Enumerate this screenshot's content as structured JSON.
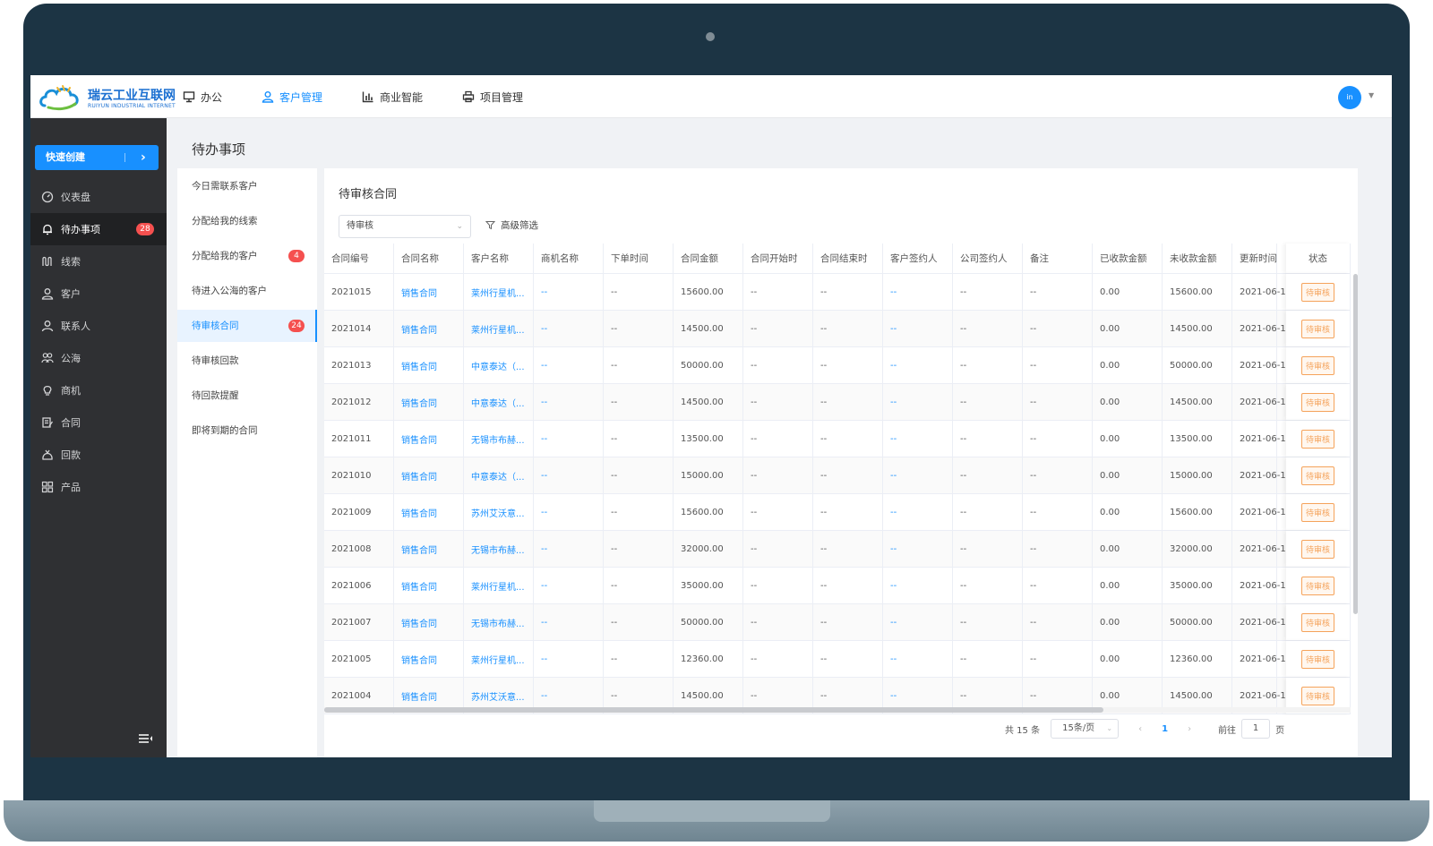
{
  "app": {
    "logo_cn": "瑞云工业互联网",
    "logo_en": "RUIYUN INDUSTRIAL INTERNET",
    "accent": "#1890ff",
    "sidebar_bg": "#2f3033",
    "badge_color": "#f5504f",
    "status_color": "#f5a35b"
  },
  "nav": {
    "items": [
      {
        "label": "办公",
        "icon": "monitor-icon"
      },
      {
        "label": "客户管理",
        "icon": "user-icon",
        "active": true
      },
      {
        "label": "商业智能",
        "icon": "bar-chart-icon"
      },
      {
        "label": "项目管理",
        "icon": "printer-icon"
      }
    ],
    "avatar": "in"
  },
  "sidebar": {
    "quick_create": "快速创建",
    "items": [
      {
        "label": "仪表盘",
        "icon": "dashboard-icon"
      },
      {
        "label": "待办事项",
        "icon": "bell-icon",
        "badge": "28",
        "active": true
      },
      {
        "label": "线索",
        "icon": "leads-icon"
      },
      {
        "label": "客户",
        "icon": "customer-icon"
      },
      {
        "label": "联系人",
        "icon": "contact-icon"
      },
      {
        "label": "公海",
        "icon": "pool-icon"
      },
      {
        "label": "商机",
        "icon": "bulb-icon"
      },
      {
        "label": "合同",
        "icon": "contract-icon"
      },
      {
        "label": "回款",
        "icon": "payment-icon"
      },
      {
        "label": "产品",
        "icon": "product-icon"
      }
    ]
  },
  "page": {
    "title": "待办事项",
    "subnav": [
      {
        "label": "今日需联系客户"
      },
      {
        "label": "分配给我的线索"
      },
      {
        "label": "分配给我的客户",
        "badge": "4"
      },
      {
        "label": "待进入公海的客户"
      },
      {
        "label": "待审核合同",
        "badge": "24",
        "active": true
      },
      {
        "label": "待审核回款"
      },
      {
        "label": "待回款提醒"
      },
      {
        "label": "即将到期的合同"
      }
    ]
  },
  "main": {
    "title": "待审核合同",
    "filter_select": "待审核",
    "advanced_filter": "高级筛选",
    "columns": [
      "合同编号",
      "合同名称",
      "客户名称",
      "商机名称",
      "下单时间",
      "合同金额",
      "合同开始时",
      "合同结束时",
      "客户签约人",
      "公司签约人",
      "备注",
      "已收款金额",
      "未收款金额",
      "更新时间",
      "状态"
    ],
    "rows": [
      [
        "2021015",
        "销售合同",
        "莱州行星机...",
        "--",
        "--",
        "15600.00",
        "--",
        "--",
        "--",
        "--",
        "--",
        "0.00",
        "15600.00",
        "2021-06-1",
        "待审核"
      ],
      [
        "2021014",
        "销售合同",
        "莱州行星机...",
        "--",
        "--",
        "14500.00",
        "--",
        "--",
        "--",
        "--",
        "--",
        "0.00",
        "14500.00",
        "2021-06-1",
        "待审核"
      ],
      [
        "2021013",
        "销售合同",
        "中意泰达（...",
        "--",
        "--",
        "50000.00",
        "--",
        "--",
        "--",
        "--",
        "--",
        "0.00",
        "50000.00",
        "2021-06-1",
        "待审核"
      ],
      [
        "2021012",
        "销售合同",
        "中意泰达（...",
        "--",
        "--",
        "14500.00",
        "--",
        "--",
        "--",
        "--",
        "--",
        "0.00",
        "14500.00",
        "2021-06-1",
        "待审核"
      ],
      [
        "2021011",
        "销售合同",
        "无锡市布赫...",
        "--",
        "--",
        "13500.00",
        "--",
        "--",
        "--",
        "--",
        "--",
        "0.00",
        "13500.00",
        "2021-06-1",
        "待审核"
      ],
      [
        "2021010",
        "销售合同",
        "中意泰达（...",
        "--",
        "--",
        "15000.00",
        "--",
        "--",
        "--",
        "--",
        "--",
        "0.00",
        "15000.00",
        "2021-06-1",
        "待审核"
      ],
      [
        "2021009",
        "销售合同",
        "苏州艾沃意...",
        "--",
        "--",
        "15600.00",
        "--",
        "--",
        "--",
        "--",
        "--",
        "0.00",
        "15600.00",
        "2021-06-1",
        "待审核"
      ],
      [
        "2021008",
        "销售合同",
        "无锡市布赫...",
        "--",
        "--",
        "32000.00",
        "--",
        "--",
        "--",
        "--",
        "--",
        "0.00",
        "32000.00",
        "2021-06-1",
        "待审核"
      ],
      [
        "2021006",
        "销售合同",
        "莱州行星机...",
        "--",
        "--",
        "35000.00",
        "--",
        "--",
        "--",
        "--",
        "--",
        "0.00",
        "35000.00",
        "2021-06-1",
        "待审核"
      ],
      [
        "2021007",
        "销售合同",
        "无锡市布赫...",
        "--",
        "--",
        "50000.00",
        "--",
        "--",
        "--",
        "--",
        "--",
        "0.00",
        "50000.00",
        "2021-06-1",
        "待审核"
      ],
      [
        "2021005",
        "销售合同",
        "莱州行星机...",
        "--",
        "--",
        "12360.00",
        "--",
        "--",
        "--",
        "--",
        "--",
        "0.00",
        "12360.00",
        "2021-06-1",
        "待审核"
      ],
      [
        "2021004",
        "销售合同",
        "苏州艾沃意...",
        "--",
        "--",
        "14500.00",
        "--",
        "--",
        "--",
        "--",
        "--",
        "0.00",
        "14500.00",
        "2021-06-1",
        "待审核"
      ]
    ]
  },
  "pager": {
    "total": "共 15 条",
    "page_size": "15条/页",
    "current": "1",
    "goto_label": "前往",
    "goto_value": "1",
    "unit": "页"
  }
}
